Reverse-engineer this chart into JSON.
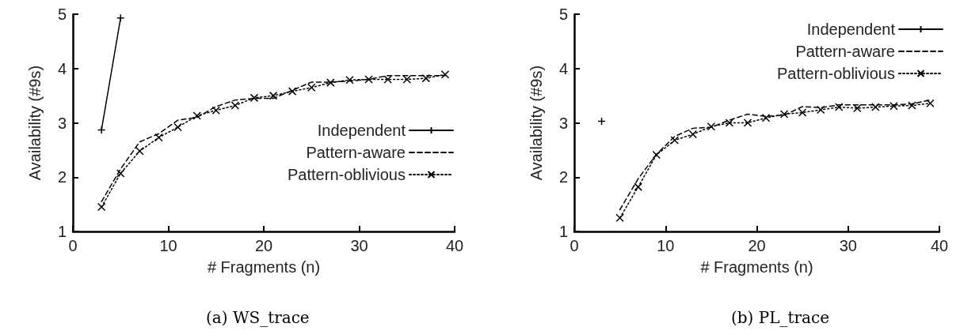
{
  "chart_data": [
    {
      "type": "line",
      "title": "(a) WS_trace",
      "xlabel": "# Fragments (n)",
      "ylabel": "Availability (#9s)",
      "xlim": [
        0,
        40
      ],
      "xticks": [
        0,
        10,
        20,
        30,
        40
      ],
      "ylim": [
        1,
        5
      ],
      "yticks": [
        1,
        2,
        3,
        4,
        5
      ],
      "grid": false,
      "legend": "right",
      "x": [
        3,
        5,
        7,
        9,
        11,
        13,
        15,
        17,
        19,
        21,
        23,
        25,
        27,
        29,
        31,
        33,
        35,
        37,
        39
      ],
      "series": [
        {
          "name": "Independent",
          "color": "#000000",
          "marker": "cross",
          "line_style": "solid",
          "values": [
            2.87,
            4.93,
            null,
            null,
            null,
            null,
            null,
            null,
            null,
            null,
            null,
            null,
            null,
            null,
            null,
            null,
            null,
            null,
            null
          ]
        },
        {
          "name": "Pattern-aware",
          "color": "#000000",
          "marker": "none",
          "line_style": "dashed",
          "values": [
            1.55,
            2.15,
            2.65,
            2.8,
            3.05,
            3.1,
            3.3,
            3.42,
            3.45,
            3.45,
            3.6,
            3.75,
            3.75,
            3.77,
            3.8,
            3.87,
            3.87,
            3.87,
            3.87
          ]
        },
        {
          "name": "Pattern-oblivious",
          "color": "#000000",
          "marker": "x",
          "line_style": "dotted",
          "values": [
            1.45,
            2.07,
            2.48,
            2.73,
            2.92,
            3.13,
            3.23,
            3.32,
            3.46,
            3.5,
            3.58,
            3.65,
            3.74,
            3.79,
            3.8,
            3.8,
            3.8,
            3.82,
            3.89
          ]
        }
      ]
    },
    {
      "type": "line",
      "title": "(b) PL_trace",
      "xlabel": "# Fragments (n)",
      "ylabel": "Availability (#9s)",
      "xlim": [
        0,
        40
      ],
      "xticks": [
        0,
        10,
        20,
        30,
        40
      ],
      "ylim": [
        1,
        5
      ],
      "yticks": [
        1,
        2,
        3,
        4,
        5
      ],
      "grid": false,
      "legend": "top right",
      "x": [
        5,
        7,
        9,
        11,
        13,
        15,
        17,
        19,
        21,
        23,
        25,
        27,
        29,
        31,
        33,
        35,
        37,
        39
      ],
      "series": [
        {
          "name": "Independent",
          "color": "#000000",
          "marker": "cross",
          "line_style": "solid",
          "x": [
            3
          ],
          "values": [
            3.03
          ]
        },
        {
          "name": "Pattern-aware",
          "color": "#000000",
          "marker": "none",
          "line_style": "dashed",
          "values": [
            1.4,
            1.97,
            2.42,
            2.75,
            2.9,
            2.92,
            3.05,
            3.16,
            3.12,
            3.14,
            3.3,
            3.28,
            3.33,
            3.33,
            3.33,
            3.33,
            3.35,
            3.42
          ]
        },
        {
          "name": "Pattern-oblivious",
          "color": "#000000",
          "marker": "x",
          "line_style": "dotted",
          "values": [
            1.25,
            1.82,
            2.41,
            2.68,
            2.79,
            2.93,
            3.0,
            3.0,
            3.09,
            3.16,
            3.19,
            3.24,
            3.29,
            3.27,
            3.29,
            3.31,
            3.32,
            3.36
          ]
        }
      ]
    }
  ]
}
